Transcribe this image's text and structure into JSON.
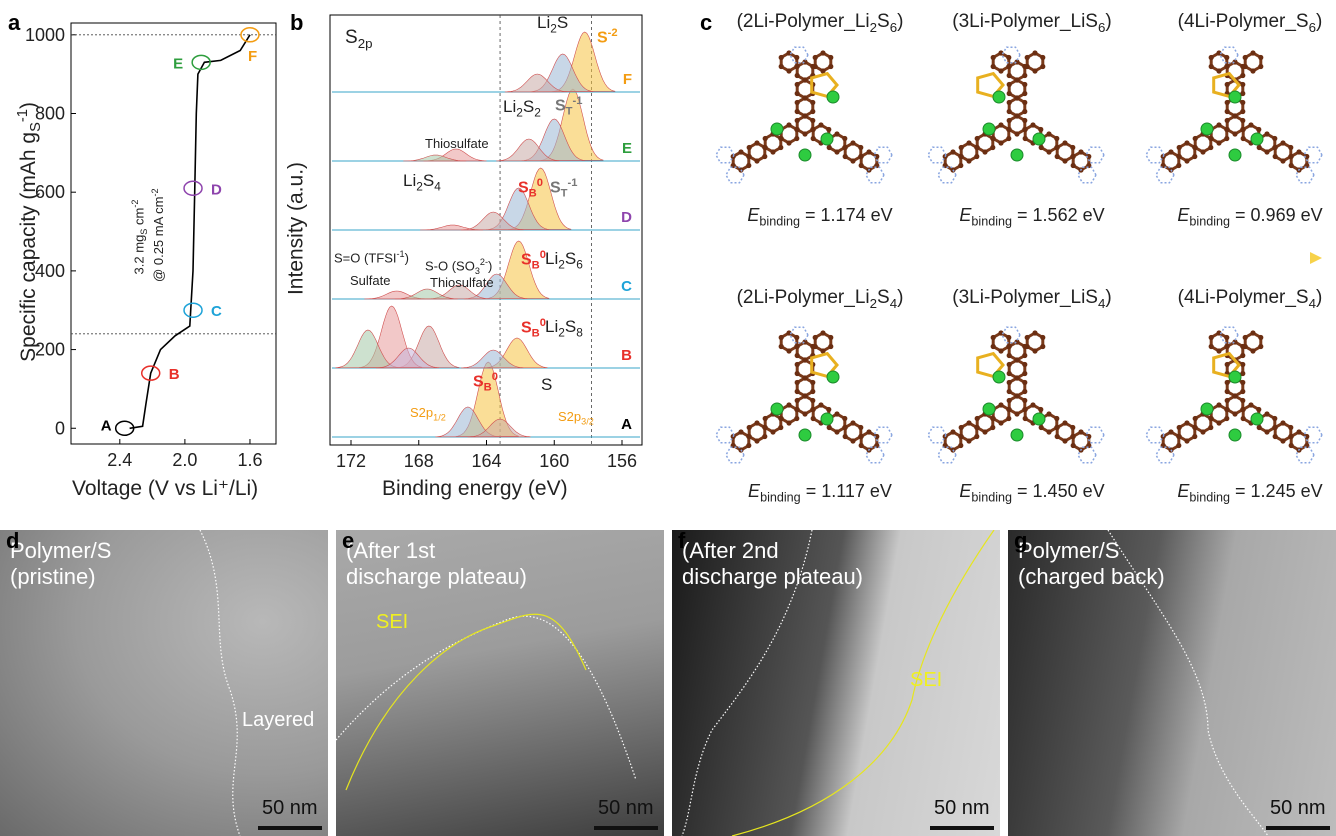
{
  "panel_labels": [
    "a",
    "b",
    "c",
    "d",
    "e",
    "f",
    "g"
  ],
  "chart_data": [
    {
      "type": "line",
      "xlabel": "Voltage (V vs Li⁺/Li)",
      "ylabel": [
        {
          "text": "Specific capacity (mAh g"
        },
        {
          "sub": "S"
        },
        {
          "sup": "-1"
        },
        {
          "text": ")"
        }
      ],
      "annotations": [
        [
          {
            "text": "3.2 mg"
          },
          {
            "sub": "S"
          },
          {
            "text": " cm"
          },
          {
            "sup": "-2"
          }
        ],
        [
          {
            "text": "@ 0.25 mA cm"
          },
          {
            "sup": "-2"
          }
        ]
      ],
      "x": [
        2.34,
        2.26,
        2.24,
        2.21,
        2.15,
        2.06,
        1.97,
        1.95,
        1.94,
        1.93,
        1.92,
        1.88,
        1.78,
        1.66,
        1.6
      ],
      "values": [
        0,
        5,
        60,
        140,
        200,
        235,
        260,
        400,
        600,
        800,
        900,
        930,
        935,
        960,
        1000
      ],
      "color": "#000000",
      "markers": [
        {
          "label": "A",
          "x": 2.37,
          "y": 0,
          "color": "#000000"
        },
        {
          "label": "B",
          "x": 2.21,
          "y": 140,
          "color": "#e8302a"
        },
        {
          "label": "C",
          "x": 1.95,
          "y": 300,
          "color": "#1ea3d8"
        },
        {
          "label": "D",
          "x": 1.95,
          "y": 610,
          "color": "#8e44ad"
        },
        {
          "label": "E",
          "x": 1.9,
          "y": 930,
          "color": "#2e9e3e"
        },
        {
          "label": "F",
          "x": 1.6,
          "y": 1000,
          "color": "#f39c12"
        }
      ],
      "hlines": [
        1000,
        240
      ],
      "xlim": [
        2.7,
        1.44
      ],
      "ylim": [
        -40,
        1030
      ],
      "xticks": [
        2.4,
        {
          "value": 2,
          "label": "2.0"
        },
        1.6
      ],
      "yticks": [
        0,
        200,
        400,
        600,
        800,
        1000
      ]
    },
    {
      "type": "spectra",
      "title": [
        {
          "text": "S"
        },
        {
          "sub": "2p"
        }
      ],
      "xlabel": "Binding energy (eV)",
      "ylabel": "Intensity (a.u.)",
      "xlim": [
        173.24,
        154.82
      ],
      "xticks": [
        172,
        168,
        164,
        160,
        156
      ],
      "vlines": [
        163.2,
        157.8
      ],
      "peak_colors": [
        "#f5c242",
        "#9bb7d4",
        "#c9a9a6",
        "#e89a9a",
        "#a4c9a8",
        "#c6b3d9"
      ],
      "series": [
        {
          "name": "A",
          "color": "#000000",
          "peaks": [
            {
              "center": 163.9,
              "height": 75
            },
            {
              "center": 165.1,
              "height": 30
            },
            {
              "center": 163.2,
              "height": 18
            }
          ]
        },
        {
          "name": "B",
          "color": "#e8302a",
          "peaks": [
            {
              "center": 162.2,
              "height": 30
            },
            {
              "center": 163.6,
              "height": 18
            },
            {
              "center": 167.4,
              "height": 42
            },
            {
              "center": 169.6,
              "height": 62
            },
            {
              "center": 171.0,
              "height": 38
            },
            {
              "center": 168.6,
              "height": 20
            }
          ]
        },
        {
          "name": "C",
          "color": "#1ea3d8",
          "peaks": [
            {
              "center": 162.1,
              "height": 58
            },
            {
              "center": 163.4,
              "height": 25
            },
            {
              "center": 165.6,
              "height": 14
            },
            {
              "center": 169.3,
              "height": 8
            },
            {
              "center": 167.5,
              "height": 10
            }
          ]
        },
        {
          "name": "D",
          "color": "#8e44ad",
          "peaks": [
            {
              "center": 160.8,
              "height": 62
            },
            {
              "center": 162.1,
              "height": 42
            },
            {
              "center": 163.6,
              "height": 18
            },
            {
              "center": 166.0,
              "height": 5
            }
          ]
        },
        {
          "name": "E",
          "color": "#2e9e3e",
          "peaks": [
            {
              "center": 158.9,
              "height": 72
            },
            {
              "center": 160.0,
              "height": 42
            },
            {
              "center": 161.5,
              "height": 22
            },
            {
              "center": 165.8,
              "height": 12
            },
            {
              "center": 167.0,
              "height": 6
            }
          ]
        },
        {
          "name": "F",
          "color": "#f39c12",
          "peaks": [
            {
              "center": 158.2,
              "height": 60
            },
            {
              "center": 159.5,
              "height": 38
            },
            {
              "center": 161.0,
              "height": 18
            }
          ]
        }
      ],
      "annotations": [
        [
          {
            "text": "Li"
          },
          {
            "sub": "2"
          },
          {
            "text": "S"
          }
        ],
        [
          {
            "text": "S"
          },
          {
            "sup": "-2"
          }
        ],
        [
          {
            "text": "Li"
          },
          {
            "sub": "2"
          },
          {
            "text": "S"
          },
          {
            "sub": "2"
          }
        ],
        [
          {
            "text": "S"
          },
          {
            "sub": "T"
          },
          {
            "sup": "-1"
          }
        ],
        "Thiosulfate",
        [
          {
            "text": "Li"
          },
          {
            "sub": "2"
          },
          {
            "text": "S"
          },
          {
            "sub": "4"
          }
        ],
        [
          {
            "text": "S"
          },
          {
            "sub": "B"
          },
          {
            "sup": "0"
          }
        ],
        [
          {
            "text": "S"
          },
          {
            "sub": "T"
          },
          {
            "sup": "-1"
          }
        ],
        [
          {
            "text": "S=O (TFSI"
          },
          {
            "sup": "-1"
          },
          {
            "text": ")"
          }
        ],
        [
          {
            "text": "S-O (SO"
          },
          {
            "sub": "3"
          },
          {
            "sup": "2-"
          },
          {
            "text": ")"
          }
        ],
        "Sulfate",
        "Thiosulfate",
        [
          {
            "text": "S"
          },
          {
            "sub": "B"
          },
          {
            "sup": "0"
          }
        ],
        [
          {
            "text": "Li"
          },
          {
            "sub": "2"
          },
          {
            "text": "S"
          },
          {
            "sub": "6"
          }
        ],
        [
          {
            "text": "S"
          },
          {
            "sub": "B"
          },
          {
            "sup": "0"
          }
        ],
        [
          {
            "text": "Li"
          },
          {
            "sub": "2"
          },
          {
            "text": "S"
          },
          {
            "sub": "8"
          }
        ],
        [
          {
            "text": "S"
          },
          {
            "sub": "B"
          },
          {
            "sup": "0"
          }
        ],
        "S",
        [
          {
            "text": "S2p"
          },
          {
            "sub": "1/2"
          }
        ],
        [
          {
            "text": "S2p"
          },
          {
            "sub": "3/2"
          }
        ]
      ]
    }
  ],
  "structures": [
    [
      {
        "title": [
          {
            "text": "(2Li-Polymer_Li"
          },
          {
            "sub": "2"
          },
          {
            "text": "S"
          },
          {
            "sub": "6"
          },
          {
            "text": ")"
          }
        ],
        "energy": [
          {
            "text": "E"
          },
          {
            "sub": "binding"
          },
          {
            "text": " = 1.174 eV"
          }
        ]
      },
      {
        "title": [
          {
            "text": "(3Li-Polymer_LiS"
          },
          {
            "sub": "6"
          },
          {
            "text": ")"
          }
        ],
        "energy": [
          {
            "text": "E"
          },
          {
            "sub": "binding"
          },
          {
            "text": " = 1.562 eV"
          }
        ]
      },
      {
        "title": [
          {
            "text": "(4Li-Polymer_S"
          },
          {
            "sub": "6"
          },
          {
            "text": ")"
          }
        ],
        "energy": [
          {
            "text": "E"
          },
          {
            "sub": "binding"
          },
          {
            "text": " = 0.969 eV"
          }
        ]
      }
    ],
    [
      {
        "title": [
          {
            "text": "(2Li-Polymer_Li"
          },
          {
            "sub": "2"
          },
          {
            "text": "S"
          },
          {
            "sub": "4"
          },
          {
            "text": ")"
          }
        ],
        "energy": [
          {
            "text": "E"
          },
          {
            "sub": "binding"
          },
          {
            "text": " = 1.117 eV"
          }
        ]
      },
      {
        "title": [
          {
            "text": "(3Li-Polymer_LiS"
          },
          {
            "sub": "4"
          },
          {
            "text": ")"
          }
        ],
        "energy": [
          {
            "text": "E"
          },
          {
            "sub": "binding"
          },
          {
            "text": " = 1.450 eV"
          }
        ]
      },
      {
        "title": [
          {
            "text": "(4Li-Polymer_S"
          },
          {
            "sub": "4"
          },
          {
            "text": ")"
          }
        ],
        "energy": [
          {
            "text": "E"
          },
          {
            "sub": "binding"
          },
          {
            "text": " = 1.245 eV"
          }
        ]
      }
    ]
  ],
  "micrographs": [
    {
      "lines": [
        "Polymer/S",
        "(pristine)"
      ],
      "notes": [
        "Layered"
      ],
      "scale": "50 nm"
    },
    {
      "lines": [
        "(After 1st",
        "discharge plateau)"
      ],
      "notes": [
        "SEI"
      ],
      "scale": "50 nm"
    },
    {
      "lines": [
        "(After 2nd",
        "discharge plateau)"
      ],
      "notes": [
        "SEI"
      ],
      "scale": "50 nm"
    },
    {
      "lines": [
        "Polymer/S",
        "(charged back)"
      ],
      "notes": [],
      "scale": "50 nm"
    }
  ]
}
